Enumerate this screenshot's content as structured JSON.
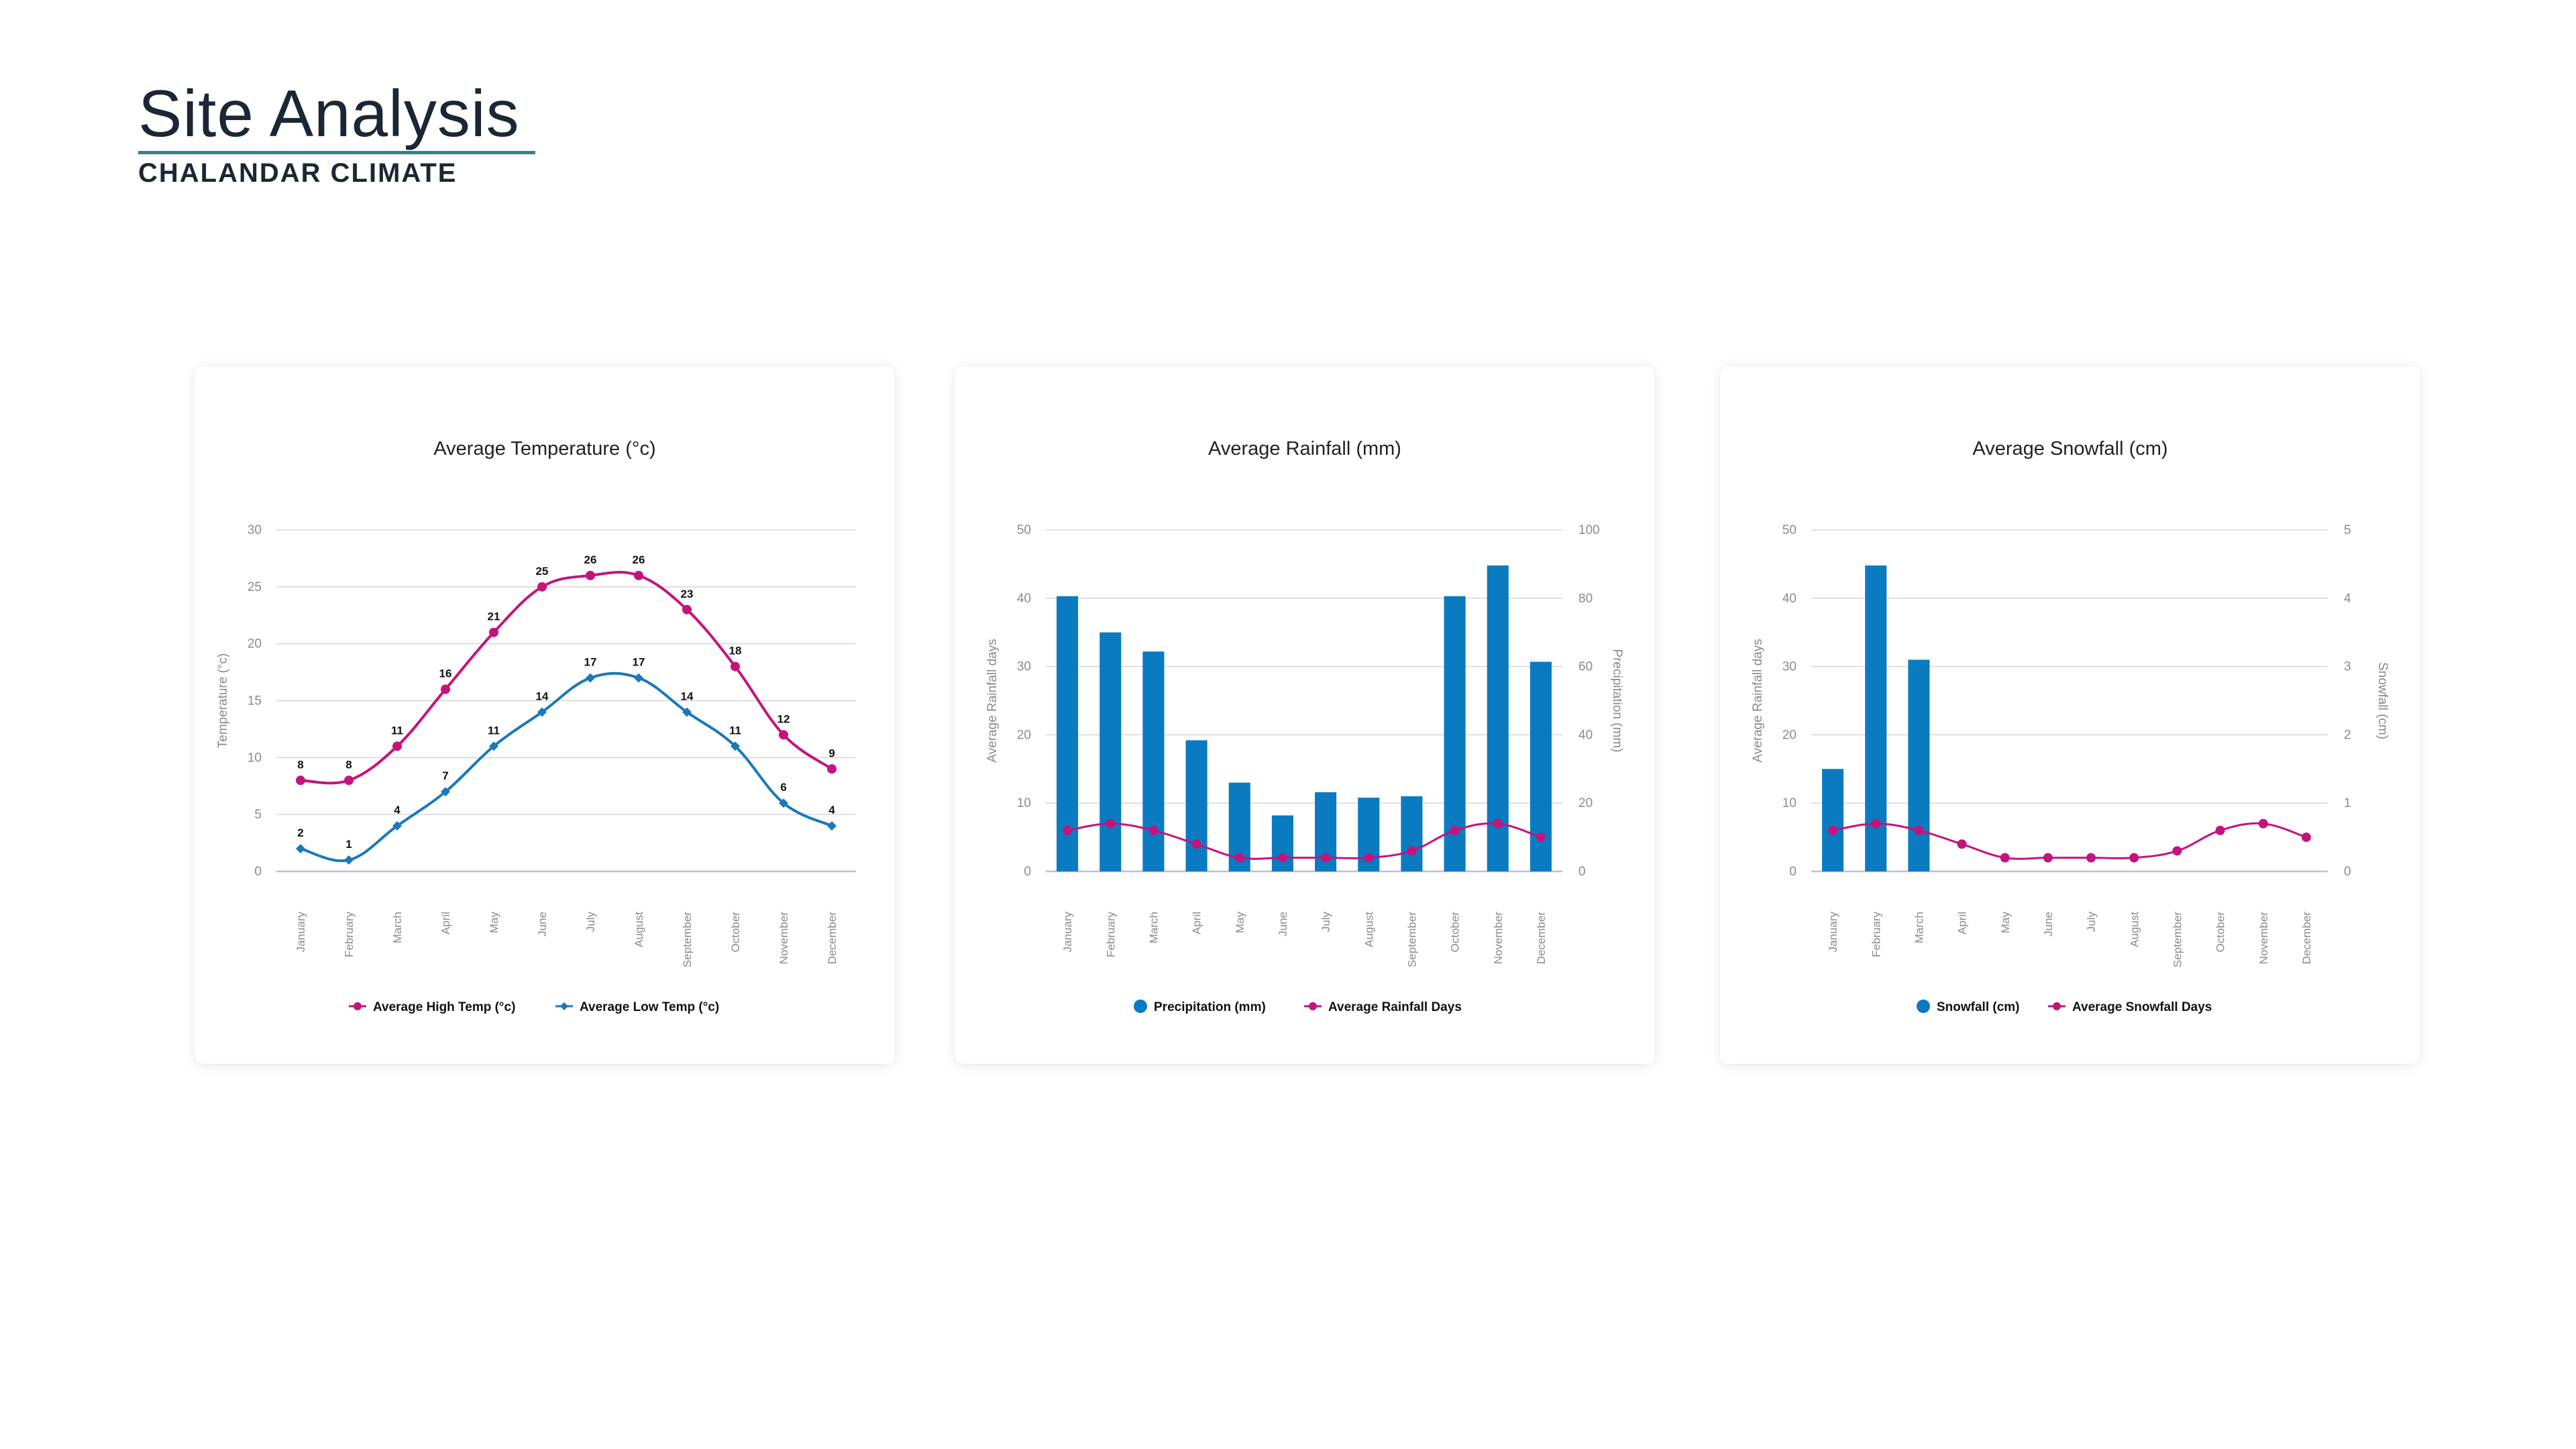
{
  "page": {
    "title": "Site Analysis",
    "subtitle": "CHALANDAR CLIMATE"
  },
  "colors": {
    "high": "#c4137d",
    "low": "#1a78b8",
    "bar": "#0a7bc1",
    "line": "#c4137d",
    "grid": "#d6d6d6",
    "baseline": "#b9bde6"
  },
  "months": [
    "January",
    "February",
    "March",
    "April",
    "May",
    "June",
    "July",
    "August",
    "September",
    "October",
    "November",
    "December"
  ],
  "chart_data": [
    {
      "type": "line",
      "title": "Average Temperature (°c)",
      "ylabel": "Temperature (°c)",
      "ylim": [
        0,
        30
      ],
      "yticks": [
        "0",
        "5",
        "10",
        "15",
        "20",
        "25",
        "30"
      ],
      "series": [
        {
          "name": "Average High Temp (°c)",
          "marker": "circle",
          "values": [
            8,
            8,
            11,
            16,
            21,
            25,
            26,
            26,
            23,
            18,
            12,
            9
          ]
        },
        {
          "name": "Average Low Temp (°c)",
          "marker": "diamond",
          "values": [
            2,
            1,
            4,
            7,
            11,
            14,
            17,
            17,
            14,
            11,
            6,
            4
          ]
        }
      ],
      "data_labels": true,
      "grid": true,
      "legend": "bottom"
    },
    {
      "type": "bar",
      "title": "Average Rainfall (mm)",
      "ylabel_left": "Average Rainfall days",
      "ylabel_right": "Precipitation (mm)",
      "ylim_left": [
        0,
        50
      ],
      "ylim_right": [
        0,
        100
      ],
      "yticks_left": [
        "0",
        "10",
        "20",
        "30",
        "40",
        "50"
      ],
      "yticks_right": [
        "0",
        "20",
        "40",
        "60",
        "80",
        "100"
      ],
      "bars": {
        "name": "Precipitation (mm)",
        "axis": "left",
        "values": [
          40.3,
          35,
          32.2,
          19.2,
          13,
          8.2,
          11.6,
          10.8,
          11,
          40.3,
          44.8,
          30.7
        ]
      },
      "line": {
        "name": "Average Rainfall Days",
        "axis": "left",
        "values": [
          6,
          7,
          6,
          4,
          2,
          2,
          2,
          2,
          3,
          6,
          7,
          5
        ]
      },
      "grid": true,
      "legend": "bottom"
    },
    {
      "type": "bar",
      "title": "Average Snowfall (cm)",
      "ylabel_left": "Average Rainfall days",
      "ylabel_right": "Snowfall (cm)",
      "ylim_left": [
        0,
        50
      ],
      "ylim_right": [
        0,
        5
      ],
      "yticks_left": [
        "0",
        "10",
        "20",
        "30",
        "40",
        "50"
      ],
      "yticks_right": [
        "0",
        "1",
        "2",
        "3",
        "4",
        "5"
      ],
      "bars": {
        "name": "Snowfall (cm)",
        "axis": "left",
        "values": [
          15,
          44.8,
          31,
          0,
          0,
          0,
          0,
          0,
          0,
          0,
          0,
          0
        ]
      },
      "line": {
        "name": "Average Snowfall Days",
        "axis": "left",
        "values": [
          6,
          7,
          6,
          4,
          2,
          2,
          2,
          2,
          3,
          6,
          7,
          5
        ]
      },
      "grid": true,
      "legend": "bottom"
    }
  ]
}
